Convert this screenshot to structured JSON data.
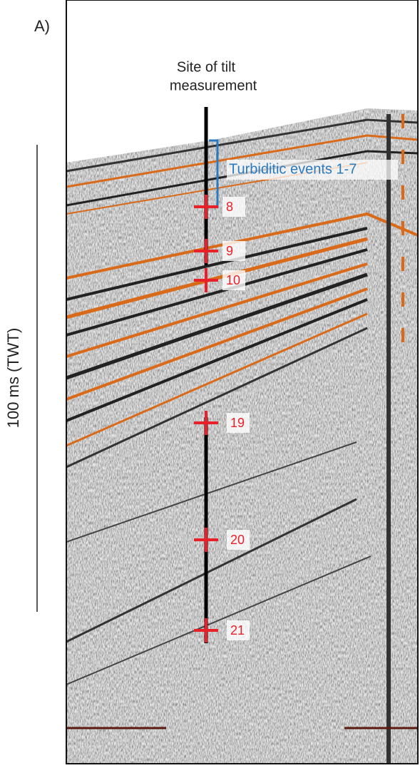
{
  "panel_label": "A)",
  "scale_label": "100 ms (TWT)",
  "site_label": [
    "Site of tilt",
    "measurement"
  ],
  "bracket_label": "Turbiditic events 1-7",
  "markers": [
    "8",
    "9",
    "10",
    "19",
    "20",
    "21"
  ]
}
